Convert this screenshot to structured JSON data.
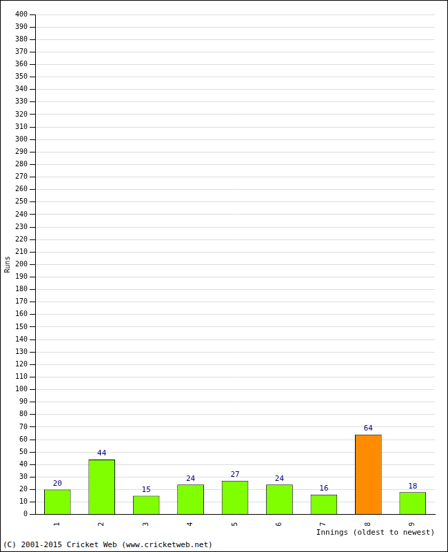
{
  "chart_data": {
    "type": "bar",
    "categories": [
      "1",
      "2",
      "3",
      "4",
      "5",
      "6",
      "7",
      "8",
      "9"
    ],
    "values": [
      20,
      44,
      15,
      24,
      27,
      24,
      16,
      64,
      18
    ],
    "colors": [
      "#80ff00",
      "#80ff00",
      "#80ff00",
      "#80ff00",
      "#80ff00",
      "#80ff00",
      "#80ff00",
      "#ff8c00",
      "#80ff00"
    ],
    "x_label": "Innings (oldest to newest)",
    "y_label": "Runs",
    "annotations": [
      "(C) 2001-2015 Cricket Web (www.cricketweb.net)"
    ],
    "ylim": [
      0,
      400
    ],
    "yticks": [
      0,
      10,
      20,
      30,
      40,
      50,
      60,
      70,
      80,
      90,
      100,
      110,
      120,
      130,
      140,
      150,
      160,
      170,
      180,
      190,
      200,
      210,
      220,
      230,
      240,
      250,
      260,
      270,
      280,
      290,
      300,
      310,
      320,
      330,
      340,
      350,
      360,
      370,
      380,
      390,
      400
    ],
    "grid": true,
    "data_labels": true
  }
}
